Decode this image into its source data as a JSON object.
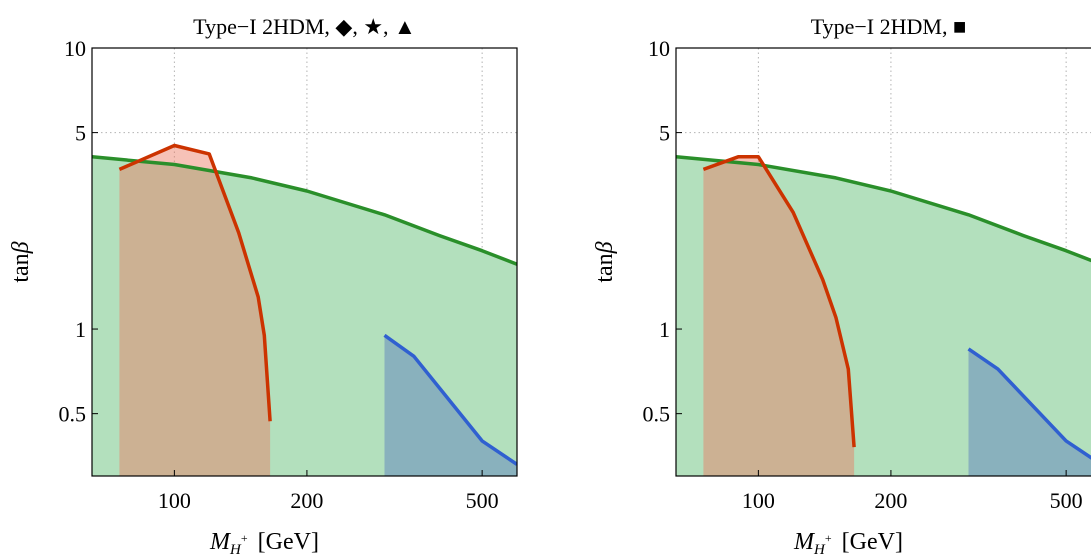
{
  "chart_data": [
    {
      "type": "area",
      "title": "Type−I  2HDM, ◆, ★, ▲",
      "xlabel_main": "M",
      "xlabel_sub": "H",
      "xlabel_sup": "+",
      "xlabel_unit": "[GeV]",
      "ylabel_main": "tan",
      "ylabel_greek": "β",
      "xscale": "log",
      "yscale": "log",
      "xlim": [
        65,
        600
      ],
      "ylim": [
        0.3,
        10
      ],
      "grid": true,
      "xticks": [
        100,
        200,
        500
      ],
      "xtick_labels": [
        "100",
        "200",
        "500"
      ],
      "yticks": [
        0.5,
        1,
        5,
        10
      ],
      "ytick_labels": [
        "0.5",
        "1",
        "5",
        "10"
      ],
      "series": [
        {
          "color": "#2a8f2a",
          "fill": "#b3e0bd",
          "x": [
            65,
            100,
            150,
            200,
            300,
            400,
            500,
            600
          ],
          "y": [
            4.1,
            3.85,
            3.45,
            3.1,
            2.55,
            2.15,
            1.9,
            1.7
          ]
        },
        {
          "color": "#cc3300",
          "fill": "rgba(235,120,95,0.45)",
          "x": [
            75,
            100,
            120,
            140,
            155,
            160,
            165
          ],
          "y": [
            3.7,
            4.5,
            4.2,
            2.2,
            1.3,
            0.95,
            0.47
          ]
        },
        {
          "color": "#3060d0",
          "fill": "rgba(95,130,190,0.5)",
          "x": [
            300,
            350,
            500,
            600
          ],
          "y": [
            0.95,
            0.8,
            0.4,
            0.33
          ]
        }
      ]
    },
    {
      "type": "area",
      "title": "Type−I  2HDM, ■",
      "xlabel_main": "M",
      "xlabel_sub": "H",
      "xlabel_sup": "+",
      "xlabel_unit": "[GeV]",
      "ylabel_main": "tan",
      "ylabel_greek": "β",
      "xscale": "log",
      "yscale": "log",
      "xlim": [
        65,
        600
      ],
      "ylim": [
        0.3,
        10
      ],
      "grid": true,
      "xticks": [
        100,
        200,
        500
      ],
      "xtick_labels": [
        "100",
        "200",
        "500"
      ],
      "yticks": [
        0.5,
        1,
        5,
        10
      ],
      "ytick_labels": [
        "0.5",
        "1",
        "5",
        "10"
      ],
      "series": [
        {
          "color": "#2a8f2a",
          "fill": "#b3e0bd",
          "x": [
            65,
            100,
            150,
            200,
            300,
            400,
            500,
            600
          ],
          "y": [
            4.1,
            3.85,
            3.45,
            3.1,
            2.55,
            2.15,
            1.9,
            1.7
          ]
        },
        {
          "color": "#cc3300",
          "fill": "rgba(235,120,95,0.45)",
          "x": [
            75,
            90,
            100,
            120,
            140,
            150,
            160,
            165
          ],
          "y": [
            3.7,
            4.1,
            4.1,
            2.6,
            1.5,
            1.1,
            0.72,
            0.38
          ]
        },
        {
          "color": "#3060d0",
          "fill": "rgba(95,130,190,0.5)",
          "x": [
            300,
            350,
            500,
            600
          ],
          "y": [
            0.85,
            0.72,
            0.4,
            0.33
          ]
        }
      ]
    }
  ]
}
